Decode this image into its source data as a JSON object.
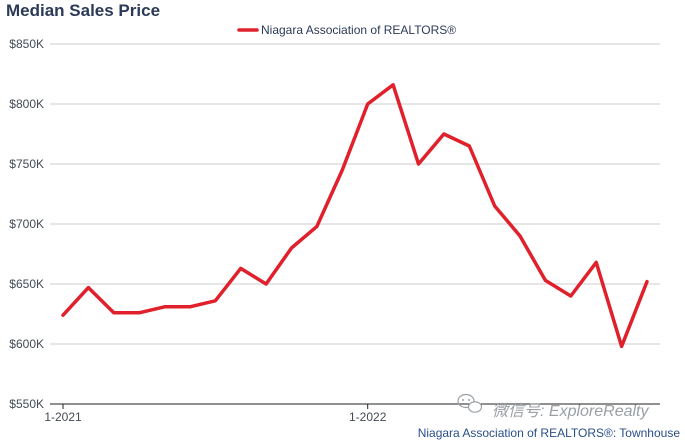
{
  "title": "Median Sales Price",
  "legend": {
    "label": "Niagara Association of REALTORS®"
  },
  "source": "Niagara Association of REALTORS®: Townhouse",
  "watermark": "微信号: ExploreRealty",
  "colors": {
    "series": "#e0202b",
    "grid": "#cccccc",
    "axis": "#222222",
    "title": "#2b3a57"
  },
  "chart_data": {
    "type": "line",
    "title": "Median Sales Price",
    "xlabel": "",
    "ylabel": "",
    "ylim": [
      550000,
      850000
    ],
    "y_ticks": [
      550000,
      600000,
      650000,
      700000,
      750000,
      800000,
      850000
    ],
    "y_tick_labels": [
      "$550K",
      "$600K",
      "$650K",
      "$700K",
      "$750K",
      "$800K",
      "$850K"
    ],
    "x_tick_labels": [
      {
        "index": 0,
        "label": "1-2021"
      },
      {
        "index": 12,
        "label": "1-2022"
      }
    ],
    "series": [
      {
        "name": "Niagara Association of REALTORS®",
        "values": [
          624000,
          647000,
          626000,
          626000,
          631000,
          631000,
          636000,
          663000,
          650000,
          680000,
          698000,
          745000,
          800000,
          816000,
          750000,
          775000,
          765000,
          715000,
          690000,
          653000,
          640000,
          668000,
          598000,
          652000
        ]
      }
    ]
  }
}
